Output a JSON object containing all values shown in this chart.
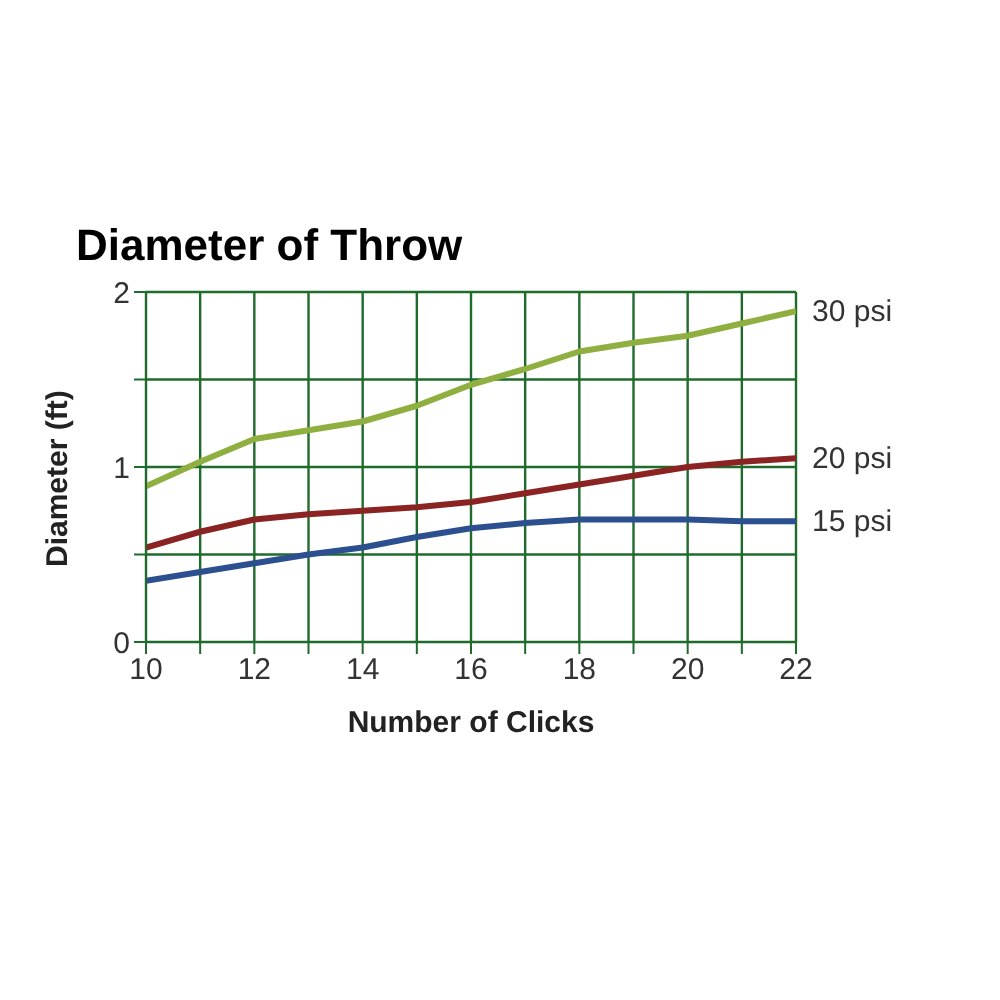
{
  "chart_data": {
    "type": "line",
    "title": "Diameter of Throw",
    "xlabel": "Number of Clicks",
    "ylabel": "Diameter (ft)",
    "x": [
      10,
      11,
      12,
      13,
      14,
      15,
      16,
      17,
      18,
      19,
      20,
      21,
      22
    ],
    "series": [
      {
        "name": "30 psi",
        "color": "#8fb040",
        "values": [
          0.89,
          1.03,
          1.16,
          1.21,
          1.26,
          1.35,
          1.47,
          1.56,
          1.66,
          1.71,
          1.75,
          1.82,
          1.89
        ]
      },
      {
        "name": "20 psi",
        "color": "#8b2323",
        "values": [
          0.54,
          0.63,
          0.7,
          0.73,
          0.75,
          0.77,
          0.8,
          0.85,
          0.9,
          0.95,
          1.0,
          1.03,
          1.05
        ]
      },
      {
        "name": "15 psi",
        "color": "#2c4f8f",
        "values": [
          0.35,
          0.4,
          0.45,
          0.5,
          0.54,
          0.6,
          0.65,
          0.68,
          0.7,
          0.7,
          0.7,
          0.69,
          0.69
        ]
      }
    ],
    "xlim": [
      10,
      22
    ],
    "xticks": [
      10,
      {
        "value": 11,
        "label": null
      },
      12,
      {
        "value": 13,
        "label": null
      },
      14,
      {
        "value": 15,
        "label": null
      },
      16,
      {
        "value": 17,
        "label": null
      },
      18,
      {
        "value": 19,
        "label": null
      },
      20,
      {
        "value": 21,
        "label": null
      },
      22
    ],
    "ylim": [
      0,
      2
    ],
    "yticks": [
      0,
      {
        "value": 0.5,
        "label": null
      },
      1,
      {
        "value": 1.5,
        "label": null
      },
      2
    ],
    "grid": true,
    "marker": "none",
    "line_style": "solid"
  }
}
